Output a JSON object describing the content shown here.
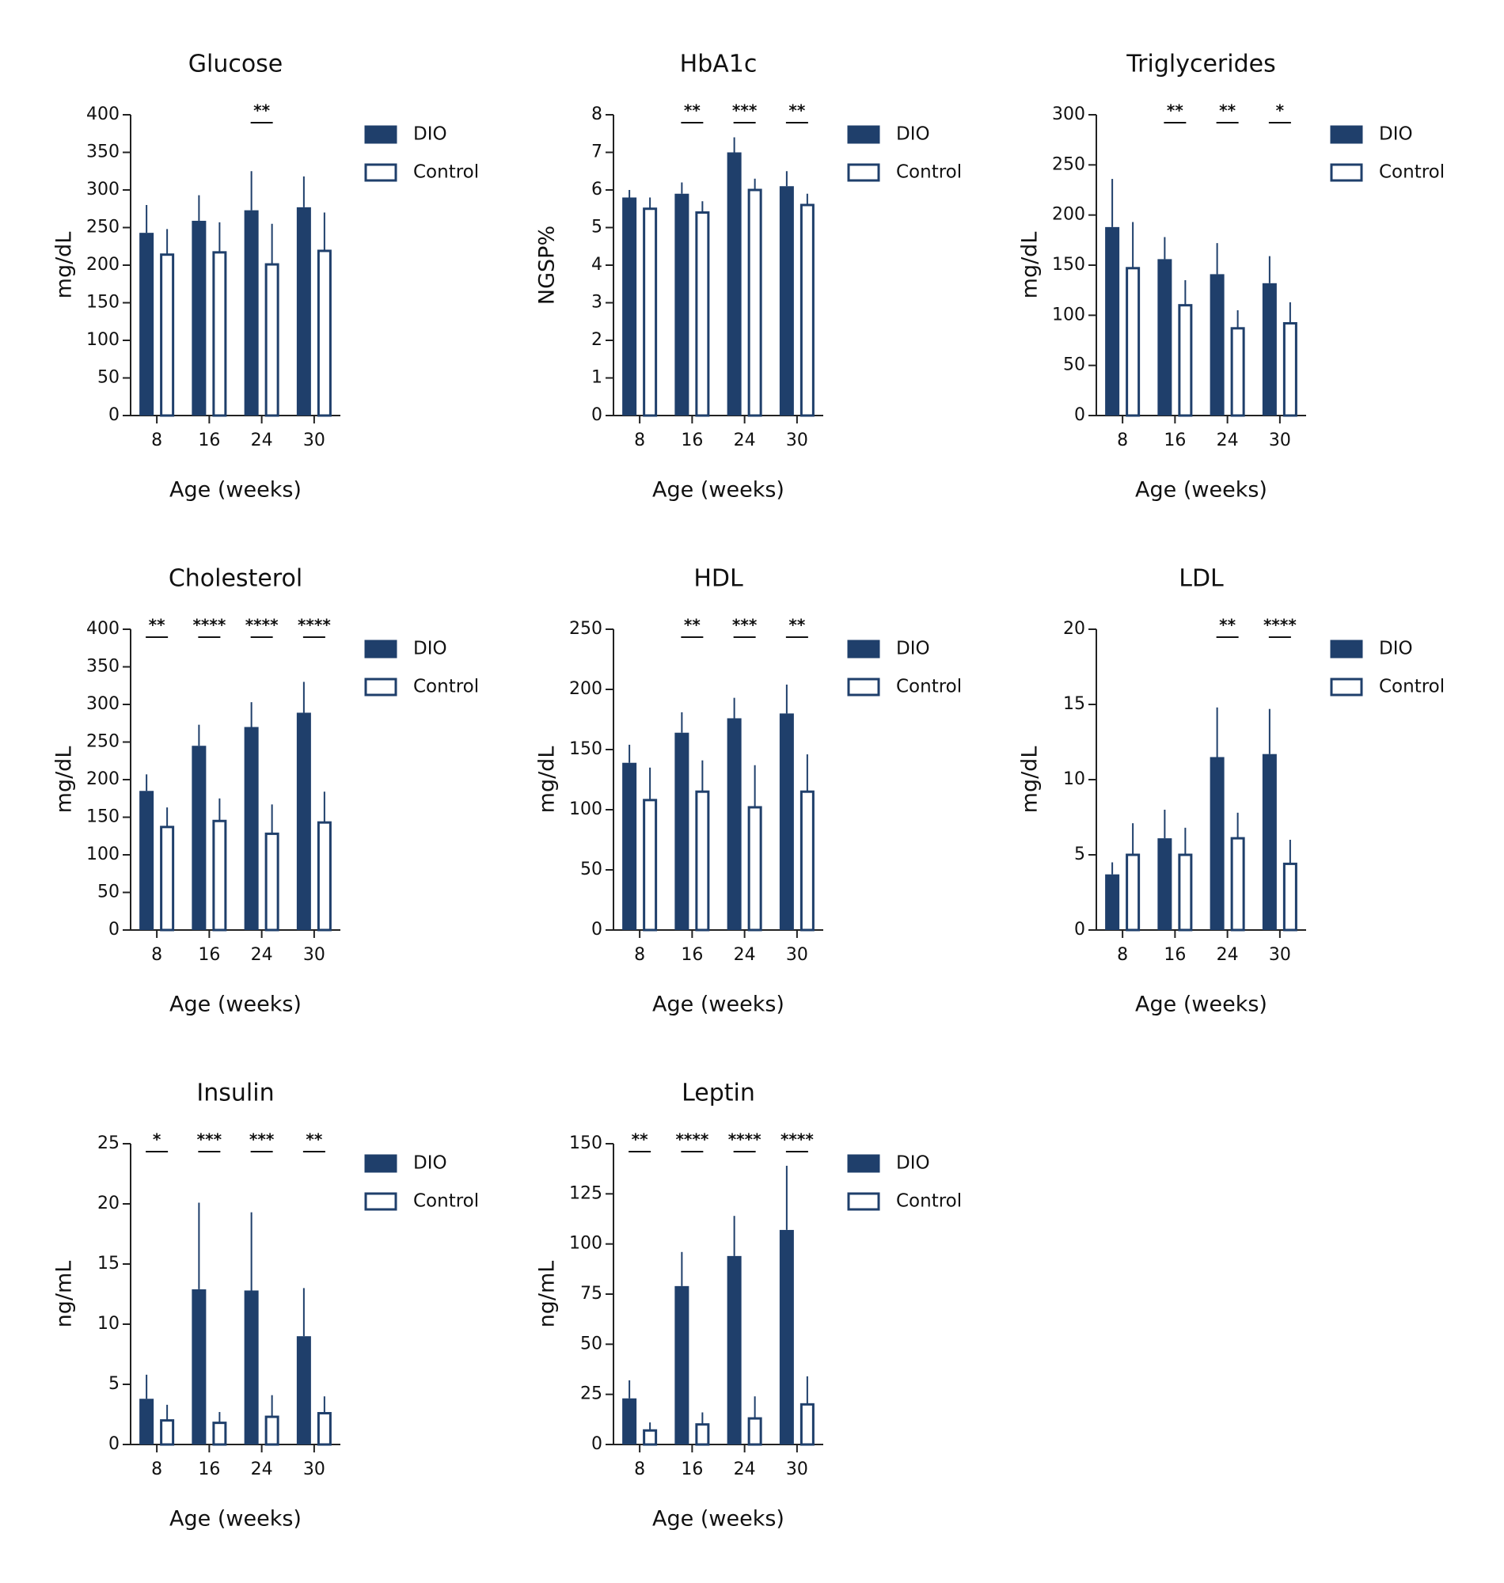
{
  "chart_data": [
    {
      "type": "bar",
      "title": "Glucose",
      "y_label": "mg/dL",
      "x_label": "Age (weeks)",
      "categories": [
        "8",
        "16",
        "24",
        "30"
      ],
      "series": [
        {
          "name": "DIO",
          "color": "#1f3f6b",
          "style": "filled",
          "values": [
            243,
            259,
            273,
            277
          ],
          "errors": [
            37,
            34,
            52,
            41
          ]
        },
        {
          "name": "Control",
          "color": "#1f3f6b",
          "style": "outline",
          "values": [
            214,
            217,
            201,
            219
          ],
          "errors": [
            34,
            40,
            54,
            51
          ]
        }
      ],
      "annotations": [
        null,
        null,
        "**",
        null
      ],
      "ylim": [
        0,
        400
      ],
      "yticks": [
        0,
        50,
        100,
        150,
        200,
        250,
        300,
        350,
        400
      ]
    },
    {
      "type": "bar",
      "title": "HbA1c",
      "y_label": "NGSP%",
      "x_label": "Age (weeks)",
      "categories": [
        "8",
        "16",
        "24",
        "30"
      ],
      "series": [
        {
          "name": "DIO",
          "color": "#1f3f6b",
          "style": "filled",
          "values": [
            5.8,
            5.9,
            7.0,
            6.1
          ],
          "errors": [
            0.2,
            0.3,
            0.4,
            0.4
          ]
        },
        {
          "name": "Control",
          "color": "#1f3f6b",
          "style": "outline",
          "values": [
            5.5,
            5.4,
            6.0,
            5.6
          ],
          "errors": [
            0.3,
            0.3,
            0.3,
            0.3
          ]
        }
      ],
      "annotations": [
        null,
        "**",
        "***",
        "**"
      ],
      "ylim": [
        0,
        8
      ],
      "yticks": [
        0,
        1,
        2,
        3,
        4,
        5,
        6,
        7,
        8
      ]
    },
    {
      "type": "bar",
      "title": "Triglycerides",
      "y_label": "mg/dL",
      "x_label": "Age (weeks)",
      "categories": [
        "8",
        "16",
        "24",
        "30"
      ],
      "series": [
        {
          "name": "DIO",
          "color": "#1f3f6b",
          "style": "filled",
          "values": [
            188,
            156,
            141,
            132
          ],
          "errors": [
            48,
            22,
            31,
            27
          ]
        },
        {
          "name": "Control",
          "color": "#1f3f6b",
          "style": "outline",
          "values": [
            147,
            110,
            87,
            92
          ],
          "errors": [
            46,
            25,
            18,
            21
          ]
        }
      ],
      "annotations": [
        null,
        "**",
        "**",
        "*"
      ],
      "ylim": [
        0,
        300
      ],
      "yticks": [
        0,
        50,
        100,
        150,
        200,
        250,
        300
      ]
    },
    {
      "type": "bar",
      "title": "Cholesterol",
      "y_label": "mg/dL",
      "x_label": "Age (weeks)",
      "categories": [
        "8",
        "16",
        "24",
        "30"
      ],
      "series": [
        {
          "name": "DIO",
          "color": "#1f3f6b",
          "style": "filled",
          "values": [
            185,
            245,
            270,
            289
          ],
          "errors": [
            22,
            28,
            33,
            41
          ]
        },
        {
          "name": "Control",
          "color": "#1f3f6b",
          "style": "outline",
          "values": [
            137,
            145,
            128,
            143
          ],
          "errors": [
            26,
            30,
            39,
            41
          ]
        }
      ],
      "annotations": [
        "**",
        "****",
        "****",
        "****"
      ],
      "ylim": [
        0,
        400
      ],
      "yticks": [
        0,
        50,
        100,
        150,
        200,
        250,
        300,
        350,
        400
      ]
    },
    {
      "type": "bar",
      "title": "HDL",
      "y_label": "mg/dL",
      "x_label": "Age (weeks)",
      "categories": [
        "8",
        "16",
        "24",
        "30"
      ],
      "series": [
        {
          "name": "DIO",
          "color": "#1f3f6b",
          "style": "filled",
          "values": [
            139,
            164,
            176,
            180
          ],
          "errors": [
            15,
            17,
            17,
            24
          ]
        },
        {
          "name": "Control",
          "color": "#1f3f6b",
          "style": "outline",
          "values": [
            108,
            115,
            102,
            115
          ],
          "errors": [
            27,
            26,
            35,
            31
          ]
        }
      ],
      "annotations": [
        null,
        "**",
        "***",
        "**"
      ],
      "ylim": [
        0,
        250
      ],
      "yticks": [
        0,
        50,
        100,
        150,
        200,
        250
      ]
    },
    {
      "type": "bar",
      "title": "LDL",
      "y_label": "mg/dL",
      "x_label": "Age (weeks)",
      "categories": [
        "8",
        "16",
        "24",
        "30"
      ],
      "series": [
        {
          "name": "DIO",
          "color": "#1f3f6b",
          "style": "filled",
          "values": [
            3.7,
            6.1,
            11.5,
            11.7
          ],
          "errors": [
            0.8,
            1.9,
            3.3,
            3.0
          ]
        },
        {
          "name": "Control",
          "color": "#1f3f6b",
          "style": "outline",
          "values": [
            5.0,
            5.0,
            6.1,
            4.4
          ],
          "errors": [
            2.1,
            1.8,
            1.7,
            1.6
          ]
        }
      ],
      "annotations": [
        null,
        null,
        "**",
        "****"
      ],
      "ylim": [
        0,
        20
      ],
      "yticks": [
        0,
        5,
        10,
        15,
        20
      ]
    },
    {
      "type": "bar",
      "title": "Insulin",
      "y_label": "ng/mL",
      "x_label": "Age (weeks)",
      "categories": [
        "8",
        "16",
        "24",
        "30"
      ],
      "series": [
        {
          "name": "DIO",
          "color": "#1f3f6b",
          "style": "filled",
          "values": [
            3.8,
            12.9,
            12.8,
            9.0
          ],
          "errors": [
            2.0,
            7.2,
            6.5,
            4.0
          ]
        },
        {
          "name": "Control",
          "color": "#1f3f6b",
          "style": "outline",
          "values": [
            2.0,
            1.8,
            2.3,
            2.6
          ],
          "errors": [
            1.3,
            0.9,
            1.8,
            1.4
          ]
        }
      ],
      "annotations": [
        "*",
        "***",
        "***",
        "**"
      ],
      "ylim": [
        0,
        25
      ],
      "yticks": [
        0,
        5,
        10,
        15,
        20,
        25
      ]
    },
    {
      "type": "bar",
      "title": "Leptin",
      "y_label": "ng/mL",
      "x_label": "Age (weeks)",
      "categories": [
        "8",
        "16",
        "24",
        "30"
      ],
      "series": [
        {
          "name": "DIO",
          "color": "#1f3f6b",
          "style": "filled",
          "values": [
            23,
            79,
            94,
            107
          ],
          "errors": [
            9,
            17,
            20,
            32
          ]
        },
        {
          "name": "Control",
          "color": "#1f3f6b",
          "style": "outline",
          "values": [
            7,
            10,
            13,
            20
          ],
          "errors": [
            4,
            6,
            11,
            14
          ]
        }
      ],
      "annotations": [
        "**",
        "****",
        "****",
        "****"
      ],
      "ylim": [
        0,
        150
      ],
      "yticks": [
        0,
        25,
        50,
        75,
        100,
        125,
        150
      ]
    }
  ]
}
